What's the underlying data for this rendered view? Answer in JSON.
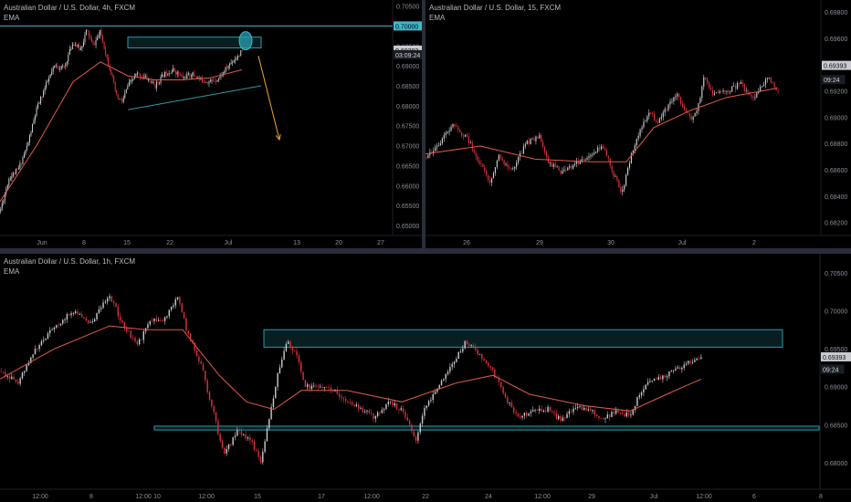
{
  "chart_data": [
    {
      "type": "candlestick",
      "title": "Australian Dollar / U.S. Dollar, 4h, FXCM",
      "indicator": "EMA",
      "ylim": [
        0.6475,
        0.7065
      ],
      "y_ticks": [
        "0.70500",
        "0.70000",
        "0.69500",
        "0.69000",
        "0.68500",
        "0.68000",
        "0.67500",
        "0.67000",
        "0.66500",
        "0.66000",
        "0.65500",
        "0.65000"
      ],
      "x_ticks": [
        "Jun",
        "8",
        "15",
        "22",
        "Jul",
        "13",
        "20",
        "27"
      ],
      "price_labels": [
        {
          "text": "0.70000",
          "value": 0.7,
          "style": "level"
        },
        {
          "text": "0.69393",
          "value": 0.69393,
          "style": "last"
        },
        {
          "text": "03:09:24",
          "value": 0.6928,
          "style": "timer"
        }
      ],
      "path": [
        [
          0,
          0.6535
        ],
        [
          10,
          0.662
        ],
        [
          20,
          0.664
        ],
        [
          30,
          0.67
        ],
        [
          40,
          0.679
        ],
        [
          50,
          0.685
        ],
        [
          60,
          0.69
        ],
        [
          70,
          0.6895
        ],
        [
          80,
          0.696
        ],
        [
          88,
          0.694
        ],
        [
          95,
          0.699
        ],
        [
          102,
          0.695
        ],
        [
          110,
          0.6985
        ],
        [
          116,
          0.693
        ],
        [
          122,
          0.688
        ],
        [
          128,
          0.682
        ],
        [
          134,
          0.681
        ],
        [
          140,
          0.685
        ],
        [
          150,
          0.688
        ],
        [
          160,
          0.687
        ],
        [
          170,
          0.685
        ],
        [
          180,
          0.688
        ],
        [
          190,
          0.689
        ],
        [
          200,
          0.687
        ],
        [
          210,
          0.688
        ],
        [
          220,
          0.6865
        ],
        [
          230,
          0.686
        ],
        [
          240,
          0.687
        ],
        [
          250,
          0.69
        ],
        [
          260,
          0.6925
        ],
        [
          265,
          0.6935
        ]
      ],
      "candle_count": 176,
      "ema_path": [
        [
          0,
          0.656
        ],
        [
          40,
          0.67
        ],
        [
          80,
          0.686
        ],
        [
          110,
          0.691
        ],
        [
          140,
          0.6875
        ],
        [
          170,
          0.6865
        ],
        [
          200,
          0.6865
        ],
        [
          230,
          0.687
        ],
        [
          265,
          0.689
        ]
      ],
      "annotations": [
        {
          "type": "hline",
          "value": 0.7,
          "color": "#3fb8c9"
        },
        {
          "type": "rect",
          "x0": 140,
          "x1": 286,
          "y0": 0.6972,
          "y1": 0.6945,
          "color": "#2a9aa8"
        },
        {
          "type": "trendline",
          "x0": 140,
          "y0": 0.679,
          "x1": 286,
          "y1": 0.685,
          "color": "#2a9aa8"
        },
        {
          "type": "ellipse",
          "cx": 269,
          "cy": 0.6963,
          "color": "#3fb8c9"
        },
        {
          "type": "arrow",
          "x0": 283,
          "y0": 0.6925,
          "x1": 306,
          "y1": 0.6715,
          "color": "#f0a830"
        }
      ]
    },
    {
      "type": "candlestick",
      "title": "Australian Dollar / U.S. Dollar, 15, FXCM",
      "indicator": "EMA",
      "ylim": [
        0.681,
        0.6989
      ],
      "y_ticks": [
        "0.69800",
        "0.69600",
        "0.69400",
        "0.69200",
        "0.69000",
        "0.68800",
        "0.68600",
        "0.68400",
        "0.68200"
      ],
      "x_ticks": [
        "26",
        "29",
        "30",
        "Jul",
        "2"
      ],
      "price_labels": [
        {
          "text": "0.69393",
          "value": 0.69393,
          "style": "last"
        },
        {
          "text": "09:24",
          "value": 0.69285,
          "style": "timer"
        }
      ],
      "path": [
        [
          0,
          0.687
        ],
        [
          15,
          0.688
        ],
        [
          30,
          0.6893
        ],
        [
          45,
          0.6885
        ],
        [
          60,
          0.6865
        ],
        [
          70,
          0.685
        ],
        [
          80,
          0.687
        ],
        [
          95,
          0.686
        ],
        [
          110,
          0.688
        ],
        [
          125,
          0.6885
        ],
        [
          135,
          0.6865
        ],
        [
          150,
          0.6858
        ],
        [
          165,
          0.6865
        ],
        [
          180,
          0.6872
        ],
        [
          195,
          0.6878
        ],
        [
          205,
          0.6858
        ],
        [
          215,
          0.6842
        ],
        [
          225,
          0.687
        ],
        [
          235,
          0.689
        ],
        [
          245,
          0.6905
        ],
        [
          255,
          0.6895
        ],
        [
          265,
          0.6908
        ],
        [
          275,
          0.6918
        ],
        [
          290,
          0.6898
        ],
        [
          300,
          0.691
        ],
        [
          305,
          0.693
        ],
        [
          315,
          0.6918
        ],
        [
          330,
          0.692
        ],
        [
          345,
          0.6925
        ],
        [
          360,
          0.6915
        ],
        [
          375,
          0.693
        ],
        [
          385,
          0.692
        ]
      ],
      "candle_count": 200,
      "ema_path": [
        [
          0,
          0.6872
        ],
        [
          60,
          0.6878
        ],
        [
          120,
          0.6868
        ],
        [
          180,
          0.6866
        ],
        [
          220,
          0.6866
        ],
        [
          250,
          0.6892
        ],
        [
          290,
          0.6905
        ],
        [
          330,
          0.6915
        ],
        [
          385,
          0.6922
        ]
      ],
      "annotations": []
    },
    {
      "type": "candlestick",
      "title": "Australian Dollar / U.S. Dollar, 1h, FXCM",
      "indicator": "EMA",
      "ylim": [
        0.6765,
        0.7075
      ],
      "y_ticks": [
        "0.70500",
        "0.70000",
        "0.69500",
        "0.69000",
        "0.68500",
        "0.68000"
      ],
      "x_ticks": [
        "12:00",
        "8",
        "12:00",
        "10",
        "12:00",
        "15",
        "17",
        "12:00",
        "22",
        "24",
        "12:00",
        "29",
        "Jul",
        "12:00",
        "6",
        "8"
      ],
      "price_labels": [
        {
          "text": "0.69393",
          "value": 0.69393,
          "style": "last"
        },
        {
          "text": "09:24",
          "value": 0.6923,
          "style": "timer"
        }
      ],
      "path": [
        [
          0,
          0.692
        ],
        [
          20,
          0.6905
        ],
        [
          40,
          0.695
        ],
        [
          60,
          0.698
        ],
        [
          80,
          0.7
        ],
        [
          100,
          0.6985
        ],
        [
          120,
          0.702
        ],
        [
          135,
          0.698
        ],
        [
          150,
          0.6955
        ],
        [
          165,
          0.6985
        ],
        [
          180,
          0.699
        ],
        [
          195,
          0.702
        ],
        [
          205,
          0.697
        ],
        [
          220,
          0.693
        ],
        [
          235,
          0.686
        ],
        [
          245,
          0.681
        ],
        [
          260,
          0.684
        ],
        [
          275,
          0.683
        ],
        [
          285,
          0.68
        ],
        [
          295,
          0.686
        ],
        [
          305,
          0.692
        ],
        [
          315,
          0.696
        ],
        [
          325,
          0.694
        ],
        [
          335,
          0.69
        ],
        [
          350,
          0.69
        ],
        [
          365,
          0.6895
        ],
        [
          380,
          0.688
        ],
        [
          395,
          0.687
        ],
        [
          410,
          0.686
        ],
        [
          425,
          0.688
        ],
        [
          440,
          0.687
        ],
        [
          455,
          0.683
        ],
        [
          465,
          0.687
        ],
        [
          480,
          0.69
        ],
        [
          495,
          0.693
        ],
        [
          510,
          0.696
        ],
        [
          525,
          0.694
        ],
        [
          540,
          0.692
        ],
        [
          555,
          0.688
        ],
        [
          570,
          0.686
        ],
        [
          585,
          0.687
        ],
        [
          600,
          0.687
        ],
        [
          615,
          0.6855
        ],
        [
          630,
          0.6875
        ],
        [
          645,
          0.687
        ],
        [
          660,
          0.6855
        ],
        [
          675,
          0.687
        ],
        [
          690,
          0.686
        ],
        [
          700,
          0.689
        ],
        [
          715,
          0.691
        ],
        [
          730,
          0.6915
        ],
        [
          745,
          0.6925
        ],
        [
          760,
          0.6935
        ],
        [
          768,
          0.694
        ]
      ],
      "candle_count": 330,
      "ema_path": [
        [
          0,
          0.691
        ],
        [
          60,
          0.695
        ],
        [
          120,
          0.698
        ],
        [
          160,
          0.6975
        ],
        [
          200,
          0.6975
        ],
        [
          240,
          0.6915
        ],
        [
          270,
          0.688
        ],
        [
          300,
          0.687
        ],
        [
          330,
          0.6895
        ],
        [
          380,
          0.6895
        ],
        [
          440,
          0.688
        ],
        [
          500,
          0.6905
        ],
        [
          540,
          0.6915
        ],
        [
          580,
          0.689
        ],
        [
          640,
          0.6875
        ],
        [
          690,
          0.6868
        ],
        [
          730,
          0.689
        ],
        [
          768,
          0.691
        ]
      ],
      "annotations": [
        {
          "type": "rect",
          "x0": 289,
          "x1": 857,
          "y0": 0.6975,
          "y1": 0.6952,
          "color": "#2a9aa8"
        },
        {
          "type": "rect",
          "x0": 169,
          "x1": 897,
          "y0": 0.6848,
          "y1": 0.6843,
          "color": "#2a9aa8"
        }
      ]
    }
  ]
}
